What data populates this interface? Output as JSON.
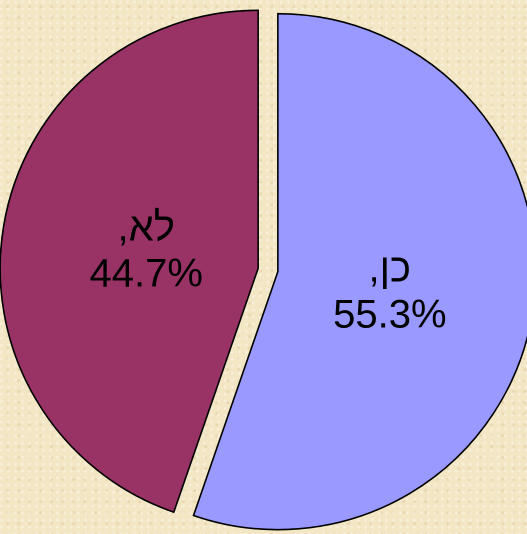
{
  "chart_data": {
    "type": "pie",
    "title": "",
    "slices": [
      {
        "label": "כן,",
        "value": 55.3,
        "display": "55.3%",
        "color": "#9999ff"
      },
      {
        "label": "לא,",
        "value": 44.7,
        "display": "44.7%",
        "color": "#993366"
      }
    ],
    "start_angle_deg": 0,
    "direction": "clockwise",
    "exploded": true,
    "legend": "none"
  },
  "colors": {
    "background": "#f3e6c4",
    "outline": "#000000"
  }
}
